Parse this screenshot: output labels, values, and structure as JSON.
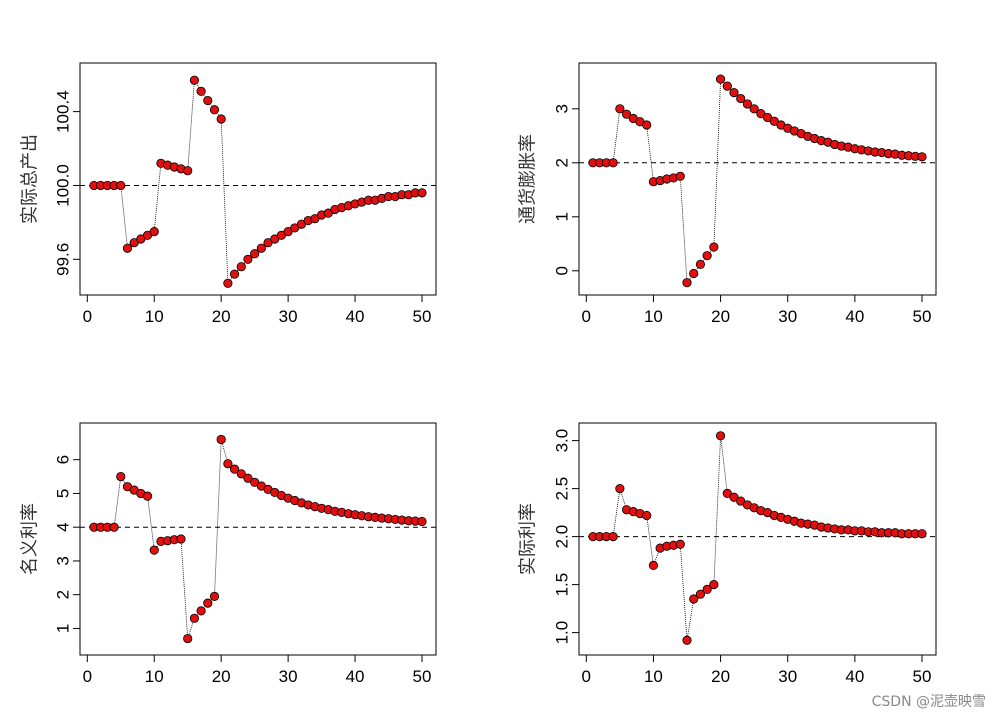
{
  "watermark": "CSDN @泥壶映雪",
  "colors": {
    "point_fill": "#e01010",
    "point_stroke": "#000000",
    "line": "#000000",
    "axis": "#000000"
  },
  "chart_data": [
    {
      "type": "line",
      "title": "",
      "xlabel": "",
      "ylabel": "实际总产出",
      "xlim": [
        1,
        50
      ],
      "ylim": [
        99.45,
        100.62
      ],
      "xticks": [
        0,
        10,
        20,
        30,
        40,
        50
      ],
      "xtick_labels": [
        "0",
        "10",
        "20",
        "30",
        "40",
        "50"
      ],
      "yticks": [
        99.6,
        100.0,
        100.4
      ],
      "ytick_labels": [
        "99.6",
        "100.0",
        "100.4"
      ],
      "reference_line": 100.0,
      "x": [
        1,
        2,
        3,
        4,
        5,
        6,
        7,
        8,
        9,
        10,
        11,
        12,
        13,
        14,
        15,
        16,
        17,
        18,
        19,
        20,
        21,
        22,
        23,
        24,
        25,
        26,
        27,
        28,
        29,
        30,
        31,
        32,
        33,
        34,
        35,
        36,
        37,
        38,
        39,
        40,
        41,
        42,
        43,
        44,
        45,
        46,
        47,
        48,
        49,
        50
      ],
      "values": [
        100.0,
        100.0,
        100.0,
        100.0,
        100.0,
        99.66,
        99.69,
        99.71,
        99.73,
        99.75,
        100.12,
        100.11,
        100.1,
        100.09,
        100.08,
        100.57,
        100.51,
        100.46,
        100.41,
        100.36,
        99.47,
        99.52,
        99.56,
        99.6,
        99.63,
        99.66,
        99.69,
        99.71,
        99.73,
        99.75,
        99.77,
        99.79,
        99.81,
        99.82,
        99.84,
        99.85,
        99.87,
        99.88,
        99.89,
        99.9,
        99.91,
        99.92,
        99.92,
        99.93,
        99.94,
        99.94,
        99.95,
        99.95,
        99.96,
        99.96
      ]
    },
    {
      "type": "line",
      "title": "",
      "xlabel": "",
      "ylabel": "通货膨胀率",
      "xlim": [
        1,
        50
      ],
      "ylim": [
        -0.3,
        3.7
      ],
      "xticks": [
        0,
        10,
        20,
        30,
        40,
        50
      ],
      "xtick_labels": [
        "0",
        "10",
        "20",
        "30",
        "40",
        "50"
      ],
      "yticks": [
        0,
        1,
        2,
        3
      ],
      "ytick_labels": [
        "0",
        "1",
        "2",
        "3"
      ],
      "reference_line": 2.0,
      "x": [
        1,
        2,
        3,
        4,
        5,
        6,
        7,
        8,
        9,
        10,
        11,
        12,
        13,
        14,
        15,
        16,
        17,
        18,
        19,
        20,
        21,
        22,
        23,
        24,
        25,
        26,
        27,
        28,
        29,
        30,
        31,
        32,
        33,
        34,
        35,
        36,
        37,
        38,
        39,
        40,
        41,
        42,
        43,
        44,
        45,
        46,
        47,
        48,
        49,
        50
      ],
      "values": [
        2.0,
        2.0,
        2.0,
        2.0,
        3.0,
        2.9,
        2.82,
        2.76,
        2.7,
        1.65,
        1.67,
        1.7,
        1.72,
        1.75,
        -0.22,
        -0.05,
        0.12,
        0.28,
        0.44,
        3.55,
        3.42,
        3.3,
        3.19,
        3.09,
        3.0,
        2.91,
        2.84,
        2.77,
        2.7,
        2.64,
        2.59,
        2.54,
        2.49,
        2.45,
        2.41,
        2.38,
        2.34,
        2.31,
        2.29,
        2.26,
        2.24,
        2.22,
        2.2,
        2.19,
        2.17,
        2.16,
        2.14,
        2.13,
        2.12,
        2.11
      ]
    },
    {
      "type": "line",
      "title": "",
      "xlabel": "",
      "ylabel": "名义利率",
      "xlim": [
        1,
        50
      ],
      "ylim": [
        0.45,
        6.85
      ],
      "xticks": [
        0,
        10,
        20,
        30,
        40,
        50
      ],
      "xtick_labels": [
        "0",
        "10",
        "20",
        "30",
        "40",
        "50"
      ],
      "yticks": [
        1,
        2,
        3,
        4,
        5,
        6
      ],
      "ytick_labels": [
        "1",
        "2",
        "3",
        "4",
        "5",
        "6"
      ],
      "reference_line": 4.0,
      "x": [
        1,
        2,
        3,
        4,
        5,
        6,
        7,
        8,
        9,
        10,
        11,
        12,
        13,
        14,
        15,
        16,
        17,
        18,
        19,
        20,
        21,
        22,
        23,
        24,
        25,
        26,
        27,
        28,
        29,
        30,
        31,
        32,
        33,
        34,
        35,
        36,
        37,
        38,
        39,
        40,
        41,
        42,
        43,
        44,
        45,
        46,
        47,
        48,
        49,
        50
      ],
      "values": [
        4.0,
        4.0,
        4.0,
        4.0,
        5.5,
        5.2,
        5.1,
        5.0,
        4.92,
        3.32,
        3.58,
        3.6,
        3.63,
        3.65,
        0.7,
        1.3,
        1.52,
        1.75,
        1.95,
        6.6,
        5.88,
        5.72,
        5.58,
        5.45,
        5.33,
        5.22,
        5.12,
        5.03,
        4.94,
        4.86,
        4.79,
        4.72,
        4.66,
        4.61,
        4.56,
        4.52,
        4.47,
        4.44,
        4.4,
        4.37,
        4.34,
        4.31,
        4.29,
        4.27,
        4.25,
        4.23,
        4.21,
        4.19,
        4.18,
        4.17
      ]
    },
    {
      "type": "line",
      "title": "",
      "xlabel": "",
      "ylabel": "实际利率",
      "xlim": [
        1,
        50
      ],
      "ylim": [
        0.85,
        3.1
      ],
      "xticks": [
        0,
        10,
        20,
        30,
        40,
        50
      ],
      "xtick_labels": [
        "0",
        "10",
        "20",
        "30",
        "40",
        "50"
      ],
      "yticks": [
        1.0,
        1.5,
        2.0,
        2.5,
        3.0
      ],
      "ytick_labels": [
        "1.0",
        "1.5",
        "2.0",
        "2.5",
        "3.0"
      ],
      "reference_line": 2.0,
      "x": [
        1,
        2,
        3,
        4,
        5,
        6,
        7,
        8,
        9,
        10,
        11,
        12,
        13,
        14,
        15,
        16,
        17,
        18,
        19,
        20,
        21,
        22,
        23,
        24,
        25,
        26,
        27,
        28,
        29,
        30,
        31,
        32,
        33,
        34,
        35,
        36,
        37,
        38,
        39,
        40,
        41,
        42,
        43,
        44,
        45,
        46,
        47,
        48,
        49,
        50
      ],
      "values": [
        2.0,
        2.0,
        2.0,
        2.0,
        2.5,
        2.28,
        2.26,
        2.24,
        2.22,
        1.7,
        1.88,
        1.9,
        1.91,
        1.92,
        0.92,
        1.35,
        1.4,
        1.45,
        1.5,
        3.05,
        2.45,
        2.41,
        2.37,
        2.33,
        2.3,
        2.27,
        2.25,
        2.22,
        2.2,
        2.18,
        2.16,
        2.14,
        2.13,
        2.12,
        2.1,
        2.09,
        2.08,
        2.07,
        2.07,
        2.06,
        2.06,
        2.05,
        2.05,
        2.04,
        2.04,
        2.04,
        2.03,
        2.03,
        2.03,
        2.03
      ]
    }
  ]
}
